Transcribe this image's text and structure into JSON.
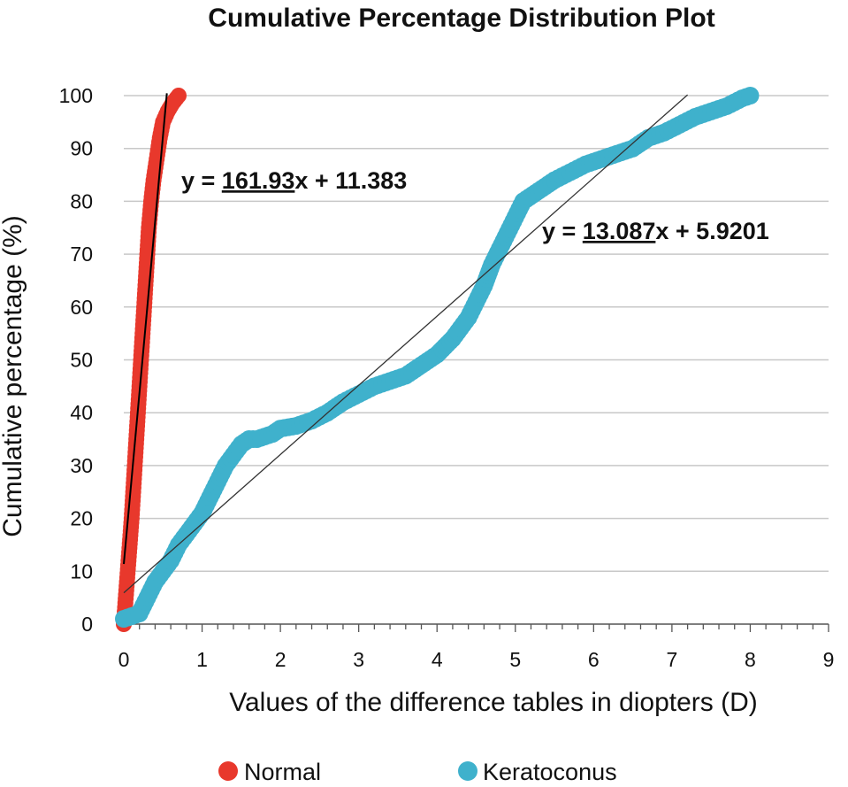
{
  "chart_data": {
    "type": "scatter",
    "title": "Cumulative Percentage Distribution Plot",
    "xlabel": "Values of the difference tables in diopters (D)",
    "ylabel": "Cumulative percentage (%)",
    "xlim": [
      0,
      9
    ],
    "ylim": [
      0,
      100
    ],
    "x_ticks": [
      "0",
      "1",
      "2",
      "3",
      "4",
      "5",
      "6",
      "7",
      "8",
      "9"
    ],
    "y_ticks": [
      "0",
      "10",
      "20",
      "30",
      "40",
      "50",
      "60",
      "70",
      "80",
      "90",
      "100"
    ],
    "grid": "horizontal",
    "legend_position": "bottom",
    "series": [
      {
        "name": "Normal",
        "color": "#e8382c",
        "points": [
          [
            0,
            0
          ],
          [
            0.02,
            4
          ],
          [
            0.04,
            8
          ],
          [
            0.06,
            12
          ],
          [
            0.08,
            16
          ],
          [
            0.1,
            20
          ],
          [
            0.12,
            25
          ],
          [
            0.14,
            30
          ],
          [
            0.16,
            35
          ],
          [
            0.18,
            40
          ],
          [
            0.2,
            45
          ],
          [
            0.22,
            50
          ],
          [
            0.24,
            55
          ],
          [
            0.26,
            60
          ],
          [
            0.28,
            65
          ],
          [
            0.3,
            70
          ],
          [
            0.32,
            75
          ],
          [
            0.35,
            80
          ],
          [
            0.38,
            84
          ],
          [
            0.42,
            88
          ],
          [
            0.46,
            92
          ],
          [
            0.5,
            95
          ],
          [
            0.56,
            97
          ],
          [
            0.62,
            98.5
          ],
          [
            0.7,
            100
          ]
        ],
        "trendline": {
          "label_value": "161.93",
          "label_prefix": "y = ",
          "label_suffix": "x + 11.383",
          "slope": 161.93,
          "intercept": 11.383,
          "x_range": [
            0,
            0.55
          ]
        }
      },
      {
        "name": "Keratoconus",
        "color": "#3fb1cc",
        "points": [
          [
            0,
            1
          ],
          [
            0.1,
            1.5
          ],
          [
            0.2,
            2
          ],
          [
            0.3,
            5
          ],
          [
            0.4,
            8
          ],
          [
            0.5,
            10
          ],
          [
            0.6,
            12
          ],
          [
            0.7,
            15
          ],
          [
            0.8,
            17
          ],
          [
            0.9,
            19
          ],
          [
            1.0,
            21
          ],
          [
            1.1,
            24
          ],
          [
            1.2,
            27
          ],
          [
            1.3,
            30
          ],
          [
            1.4,
            32
          ],
          [
            1.5,
            34
          ],
          [
            1.6,
            35
          ],
          [
            1.7,
            35
          ],
          [
            1.8,
            35.5
          ],
          [
            1.9,
            36
          ],
          [
            2.0,
            37
          ],
          [
            2.2,
            37.5
          ],
          [
            2.4,
            38.5
          ],
          [
            2.6,
            40
          ],
          [
            2.8,
            42
          ],
          [
            3.0,
            43.5
          ],
          [
            3.2,
            45
          ],
          [
            3.4,
            46
          ],
          [
            3.6,
            47
          ],
          [
            3.8,
            49
          ],
          [
            4.0,
            51
          ],
          [
            4.2,
            54
          ],
          [
            4.3,
            56
          ],
          [
            4.4,
            58
          ],
          [
            4.5,
            61
          ],
          [
            4.6,
            64
          ],
          [
            4.7,
            68
          ],
          [
            4.8,
            71
          ],
          [
            4.9,
            74
          ],
          [
            5.0,
            77
          ],
          [
            5.1,
            80
          ],
          [
            5.3,
            82
          ],
          [
            5.5,
            84
          ],
          [
            5.7,
            85.5
          ],
          [
            5.9,
            87
          ],
          [
            6.1,
            88
          ],
          [
            6.3,
            89
          ],
          [
            6.5,
            90
          ],
          [
            6.7,
            92
          ],
          [
            6.9,
            93
          ],
          [
            7.1,
            94.5
          ],
          [
            7.3,
            96
          ],
          [
            7.5,
            97
          ],
          [
            7.7,
            98
          ],
          [
            7.9,
            99.5
          ],
          [
            8.0,
            100
          ]
        ],
        "trendline": {
          "label_value": "13.087",
          "label_prefix": "y = ",
          "label_suffix": "x + 5.9201",
          "slope": 13.087,
          "intercept": 5.9201,
          "x_range": [
            0,
            7.2
          ]
        }
      }
    ]
  }
}
